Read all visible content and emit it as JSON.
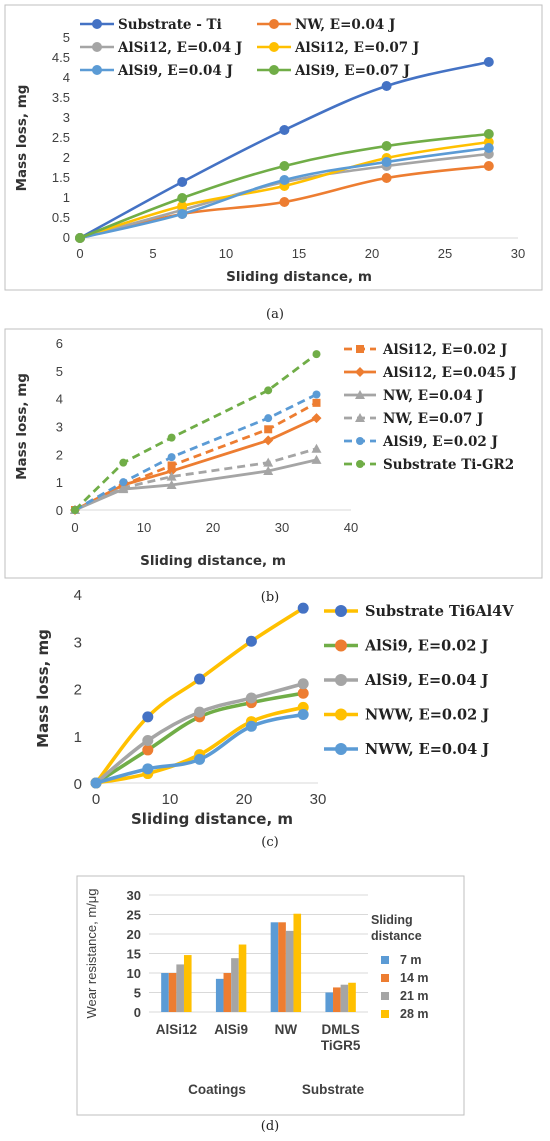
{
  "chart_data": [
    {
      "type": "line",
      "ylabel": "Mass loss, mg",
      "xlabel": "Sliding distance, m",
      "xlim": [
        0,
        30
      ],
      "ylim": [
        0,
        5
      ],
      "xticks": [
        "0",
        "5",
        "10",
        "15",
        "20",
        "25",
        "30"
      ],
      "yticks": [
        "0",
        "0.5",
        "1",
        "1.5",
        "2",
        "2.5",
        "3",
        "3.5",
        "4",
        "4.5",
        "5"
      ],
      "grid": false,
      "legend": "top",
      "caption": "(a)",
      "series": [
        {
          "name": "Substrate - Ti",
          "color": "#4472C4",
          "x": [
            0,
            7,
            14,
            21,
            28
          ],
          "y": [
            0,
            1.4,
            2.7,
            3.8,
            4.4
          ]
        },
        {
          "name": "NW, E=0.04 J",
          "color": "#ED7D31",
          "x": [
            0,
            7,
            14,
            21,
            28
          ],
          "y": [
            0,
            0.6,
            0.9,
            1.5,
            1.8
          ]
        },
        {
          "name": "AlSi12, E=0.04 J",
          "color": "#A5A5A5",
          "x": [
            0,
            7,
            14,
            21,
            28
          ],
          "y": [
            0,
            0.7,
            1.4,
            1.8,
            2.1
          ]
        },
        {
          "name": "AlSi12, E=0.07 J",
          "color": "#FFC000",
          "x": [
            0,
            7,
            14,
            21,
            28
          ],
          "y": [
            0,
            0.8,
            1.3,
            2.0,
            2.4
          ]
        },
        {
          "name": "AlSi9, E=0.04 J",
          "color": "#5B9BD5",
          "x": [
            0,
            7,
            14,
            21,
            28
          ],
          "y": [
            0,
            0.6,
            1.45,
            1.9,
            2.25
          ]
        },
        {
          "name": "AlSi9, E=0.07 J",
          "color": "#70AD47",
          "x": [
            0,
            7,
            14,
            21,
            28
          ],
          "y": [
            0,
            1.0,
            1.8,
            2.3,
            2.6
          ]
        }
      ]
    },
    {
      "type": "line",
      "ylabel": "Mass loss, mg",
      "xlabel": "Sliding distance, m",
      "xlim": [
        0,
        40
      ],
      "ylim": [
        0,
        6
      ],
      "xticks": [
        "0",
        "10",
        "20",
        "30",
        "40"
      ],
      "yticks": [
        "0",
        "1",
        "2",
        "3",
        "4",
        "5",
        "6"
      ],
      "grid": false,
      "legend": "right",
      "caption": "(b)",
      "series": [
        {
          "name": "AlSi12, E=0.02 J",
          "color": "#ED7D31",
          "dashed": true,
          "marker": "square",
          "x": [
            0,
            7,
            14,
            28,
            35
          ],
          "y": [
            0,
            0.9,
            1.6,
            2.9,
            3.85
          ]
        },
        {
          "name": "AlSi12, E=0.045 J",
          "color": "#ED7D31",
          "dashed": false,
          "marker": "diamond",
          "x": [
            0,
            7,
            14,
            28,
            35
          ],
          "y": [
            0,
            0.9,
            1.4,
            2.5,
            3.3
          ]
        },
        {
          "name": "NW, E=0.04 J",
          "color": "#A5A5A5",
          "dashed": false,
          "marker": "triangle",
          "x": [
            0,
            7,
            14,
            28,
            35
          ],
          "y": [
            0,
            0.75,
            0.9,
            1.4,
            1.8
          ]
        },
        {
          "name": "NW, E=0.07 J",
          "color": "#A5A5A5",
          "dashed": true,
          "marker": "triangle",
          "x": [
            0,
            7,
            14,
            28,
            35
          ],
          "y": [
            0,
            0.8,
            1.2,
            1.7,
            2.2
          ]
        },
        {
          "name": "AlSi9, E=0.02 J",
          "color": "#5B9BD5",
          "dashed": true,
          "marker": "circle",
          "x": [
            0,
            7,
            14,
            28,
            35
          ],
          "y": [
            0,
            1.0,
            1.9,
            3.3,
            4.15
          ]
        },
        {
          "name": "Substrate Ti-GR2",
          "color": "#70AD47",
          "dashed": true,
          "marker": "circle",
          "x": [
            0,
            7,
            14,
            28,
            35
          ],
          "y": [
            0,
            1.7,
            2.6,
            4.3,
            5.6
          ]
        }
      ]
    },
    {
      "type": "line",
      "ylabel": "Mass loss, mg",
      "xlabel": "Sliding distance, m",
      "xlim": [
        0,
        30
      ],
      "ylim": [
        0,
        4
      ],
      "xticks": [
        "0",
        "10",
        "20",
        "30"
      ],
      "yticks": [
        "0",
        "1",
        "2",
        "3",
        "4"
      ],
      "grid": false,
      "legend": "right",
      "caption": "(c)",
      "series": [
        {
          "name": "Substrate Ti6Al4V",
          "line_color": "#FFC000",
          "marker_color": "#4472C4",
          "x": [
            0,
            7,
            14,
            21,
            28
          ],
          "y": [
            0,
            1.4,
            2.2,
            3.0,
            3.7
          ]
        },
        {
          "name": "AlSi9, E=0.02 J",
          "line_color": "#70AD47",
          "marker_color": "#ED7D31",
          "x": [
            0,
            7,
            14,
            21,
            28
          ],
          "y": [
            0,
            0.7,
            1.4,
            1.7,
            1.9
          ]
        },
        {
          "name": "AlSi9, E=0.04 J",
          "line_color": "#A5A5A5",
          "marker_color": "#A5A5A5",
          "x": [
            0,
            7,
            14,
            21,
            28
          ],
          "y": [
            0,
            0.9,
            1.5,
            1.8,
            2.1
          ]
        },
        {
          "name": "NWW, E=0.02 J",
          "line_color": "#FFC000",
          "marker_color": "#FFC000",
          "x": [
            0,
            7,
            14,
            21,
            28
          ],
          "y": [
            0,
            0.2,
            0.6,
            1.3,
            1.6
          ]
        },
        {
          "name": "NWW, E=0.04 J",
          "line_color": "#5B9BD5",
          "marker_color": "#5B9BD5",
          "x": [
            0,
            7,
            14,
            21,
            28
          ],
          "y": [
            0,
            0.3,
            0.5,
            1.2,
            1.45
          ]
        }
      ]
    },
    {
      "type": "bar",
      "ylabel": "Wear resistance, m/μg",
      "ylim": [
        0,
        30
      ],
      "yticks": [
        "0",
        "5",
        "10",
        "15",
        "20",
        "25",
        "30"
      ],
      "categories": [
        [
          "AlSi12"
        ],
        [
          "AlSi9"
        ],
        [
          "NW"
        ],
        [
          "DMLS",
          "TiGR5"
        ]
      ],
      "groups": [
        "Coatings",
        "Substrate"
      ],
      "legend_title": [
        "Sliding",
        "distance"
      ],
      "legend": "right",
      "caption": "(d)",
      "series": [
        {
          "name": "7 m",
          "color": "#5B9BD5",
          "values": [
            10,
            8.5,
            23,
            5
          ]
        },
        {
          "name": "14 m",
          "color": "#ED7D31",
          "values": [
            10,
            10,
            23,
            6.3
          ]
        },
        {
          "name": "21 m",
          "color": "#A5A5A5",
          "values": [
            12.2,
            13.8,
            20.8,
            7
          ]
        },
        {
          "name": "28 m",
          "color": "#FFC000",
          "values": [
            14.6,
            17.3,
            25.2,
            7.5
          ]
        }
      ]
    }
  ]
}
